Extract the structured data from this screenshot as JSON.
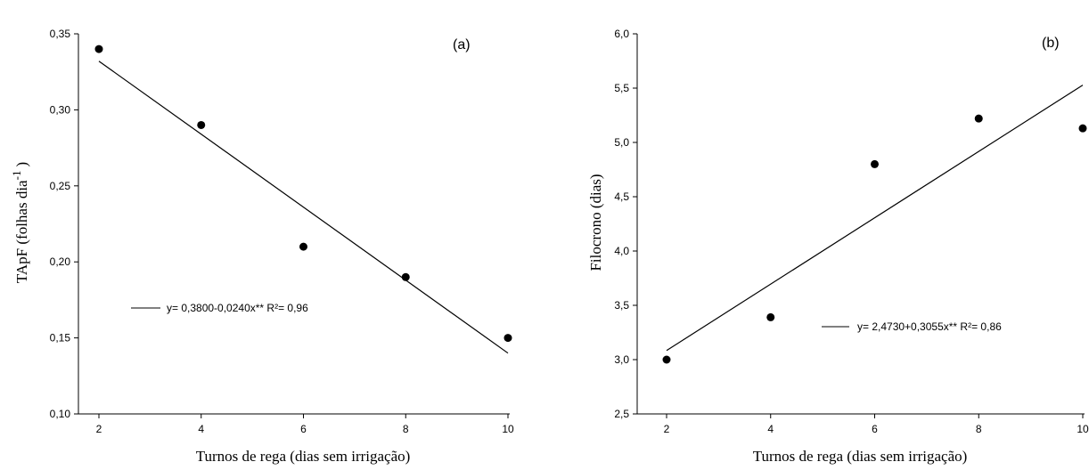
{
  "chart_data": [
    {
      "type": "scatter",
      "panel_label": "(a)",
      "xlabel": "Turnos de rega (dias sem irrigação)",
      "ylabel_main": "TApF (folhas  dia",
      "ylabel_sup": "-1",
      "ylabel_close": ")",
      "xlim": [
        2,
        10
      ],
      "ylim": [
        0.1,
        0.35
      ],
      "xticks": [
        2,
        4,
        6,
        8,
        10
      ],
      "xtick_labels": [
        "2",
        "4",
        "6",
        "8",
        "10"
      ],
      "yticks": [
        0.1,
        0.15,
        0.2,
        0.25,
        0.3,
        0.35
      ],
      "ytick_labels": [
        "0,10",
        "0,15",
        "0,20",
        "0,25",
        "0,30",
        "0,35"
      ],
      "points": [
        {
          "x": 2,
          "y": 0.34
        },
        {
          "x": 4,
          "y": 0.29
        },
        {
          "x": 6,
          "y": 0.21
        },
        {
          "x": 8,
          "y": 0.19
        },
        {
          "x": 10,
          "y": 0.15
        }
      ],
      "fit": {
        "intercept": 0.38,
        "slope": -0.024
      },
      "legend_text": "y= 0,3800-0,0240x**  R²= 0,96"
    },
    {
      "type": "scatter",
      "panel_label": "(b)",
      "xlabel": "Turnos de rega (dias sem irrigação)",
      "ylabel_main": "Filocrono (dias)",
      "ylabel_sup": "",
      "ylabel_close": "",
      "xlim": [
        2,
        10
      ],
      "ylim": [
        2.5,
        6.0
      ],
      "xticks": [
        2,
        4,
        6,
        8,
        10
      ],
      "xtick_labels": [
        "2",
        "4",
        "6",
        "8",
        "10"
      ],
      "yticks": [
        2.5,
        3.0,
        3.5,
        4.0,
        4.5,
        5.0,
        5.5,
        6.0
      ],
      "ytick_labels": [
        "2,5",
        "3,0",
        "3,5",
        "4,0",
        "4,5",
        "5,0",
        "5,5",
        "6,0"
      ],
      "points": [
        {
          "x": 2,
          "y": 3.0
        },
        {
          "x": 4,
          "y": 3.39
        },
        {
          "x": 6,
          "y": 4.8
        },
        {
          "x": 8,
          "y": 5.22
        },
        {
          "x": 10,
          "y": 5.13
        }
      ],
      "fit": {
        "intercept": 2.473,
        "slope": 0.3055
      },
      "legend_text": "y= 2,4730+0,3055x**  R²= 0,86"
    }
  ]
}
